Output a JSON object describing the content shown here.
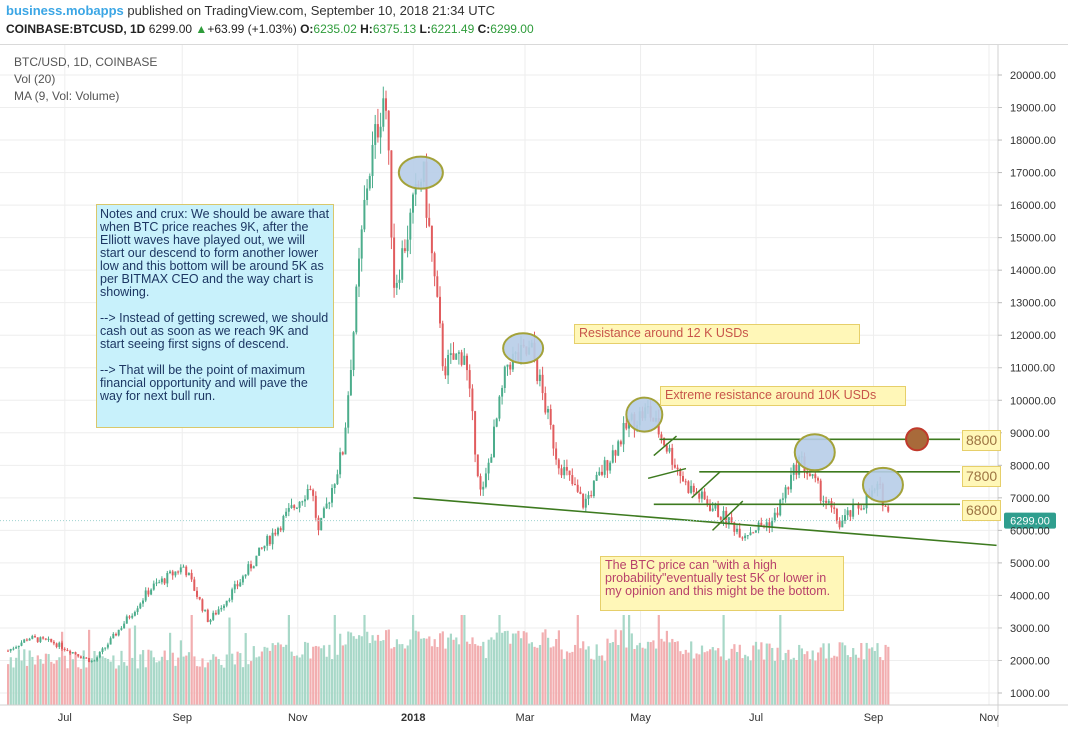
{
  "header": {
    "publisher": "business.mobapps",
    "published_text": "published on TradingView.com, September 10, 2018 21:34 UTC",
    "symbol": "COINBASE:BTCUSD, 1D",
    "last": "6299.00",
    "change_arrow": "▲",
    "change": "+63.99 (+1.03%)",
    "open_label": "O:",
    "open": "6235.02",
    "high_label": "H:",
    "high": "6375.13",
    "low_label": "L:",
    "low": "6221.49",
    "close_label": "C:",
    "close": "6299.00"
  },
  "legend": {
    "line1": "BTC/USD, 1D, COINBASE",
    "line2": "Vol (20)",
    "line3": "MA (9, Vol: Volume)"
  },
  "price_badge": "6299.00",
  "annotations": {
    "notes": "Notes and crux: We should be aware that when BTC price reaches 9K, after the Elliott waves have played out, we will start our descend to form another lower low and this bottom will be around 5K as per BITMAX CEO and the way chart is showing.\n\n--> Instead of getting screwed, we should cash out as soon as we reach 9K and start seeing first signs of descend.\n\n--> That will be the point of maximum financial opportunity and will pave the way for next bull run.",
    "resistance_12k": "Resistance around 12 K USDs",
    "resistance_10k": "Extreme resistance around 10K USDs",
    "prediction": "The BTC price can \"with a high probability\"eventually test 5K or lower in my opinion and this might be the bottom.",
    "level_8800": "8800",
    "level_7800": "7800",
    "level_6800": "6800"
  },
  "colors": {
    "up": "#4cad8c",
    "down": "#e15c5e",
    "trendline": "#3d7a1f",
    "ellipse_fill": "#b7cde8",
    "ellipse_stroke": "#a3a23a",
    "target_circle": "#c0392b",
    "brand": "#3ba6e5"
  },
  "chart_data": {
    "type": "candlestick",
    "title": "BTC/USD, 1D, COINBASE",
    "x_ticks": [
      "Jul",
      "Sep",
      "Nov",
      "2018",
      "Mar",
      "May",
      "Jul",
      "Sep",
      "Nov"
    ],
    "y_ticks": [
      "1000.00",
      "2000.00",
      "3000.00",
      "4000.00",
      "5000.00",
      "6000.00",
      "7000.00",
      "8000.00",
      "9000.00",
      "10000.00",
      "11000.00",
      "12000.00",
      "13000.00",
      "14000.00",
      "15000.00",
      "16000.00",
      "17000.00",
      "18000.00",
      "19000.00",
      "20000.00"
    ],
    "ylim": [
      850,
      20450
    ],
    "price_path_approx": [
      [
        "2017-06-01",
        2300
      ],
      [
        "2017-06-12",
        2700
      ],
      [
        "2017-06-25",
        2550
      ],
      [
        "2017-07-16",
        1950
      ],
      [
        "2017-07-25",
        2600
      ],
      [
        "2017-08-15",
        4200
      ],
      [
        "2017-09-02",
        4900
      ],
      [
        "2017-09-15",
        3200
      ],
      [
        "2017-09-30",
        4300
      ],
      [
        "2017-10-20",
        6000
      ],
      [
        "2017-11-08",
        7400
      ],
      [
        "2017-11-12",
        5900
      ],
      [
        "2017-11-25",
        8500
      ],
      [
        "2017-12-07",
        16500
      ],
      [
        "2017-12-17",
        19650
      ],
      [
        "2017-12-22",
        13500
      ],
      [
        "2018-01-06",
        17100
      ],
      [
        "2018-01-17",
        11000
      ],
      [
        "2018-01-28",
        11500
      ],
      [
        "2018-02-06",
        6900
      ],
      [
        "2018-02-20",
        11200
      ],
      [
        "2018-03-05",
        11500
      ],
      [
        "2018-03-18",
        8200
      ],
      [
        "2018-04-01",
        6800
      ],
      [
        "2018-04-25",
        9300
      ],
      [
        "2018-05-05",
        9700
      ],
      [
        "2018-05-25",
        7400
      ],
      [
        "2018-06-24",
        5900
      ],
      [
        "2018-07-10",
        6300
      ],
      [
        "2018-07-24",
        8200
      ],
      [
        "2018-08-14",
        6200
      ],
      [
        "2018-09-04",
        7300
      ],
      [
        "2018-09-10",
        6299
      ]
    ],
    "volume_max_approx": 5200,
    "horizontal_levels": [
      8800,
      7800,
      6800
    ],
    "support_line": {
      "from": [
        "2018-01-01",
        7000
      ],
      "to": [
        "2018-11-05",
        5600
      ]
    },
    "last_price": 6299.0
  }
}
